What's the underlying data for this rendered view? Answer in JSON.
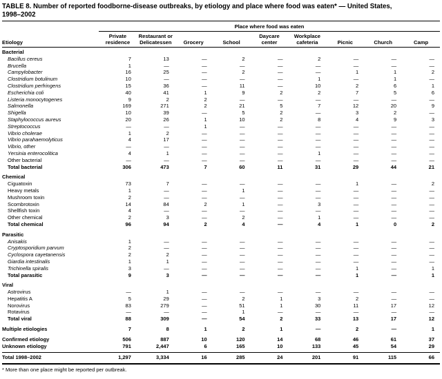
{
  "title": {
    "line1": "TABLE 8. Number of reported foodborne-disease outbreaks, by etiology and place where food was eaten* — United States,",
    "line2": "1998–2002"
  },
  "table": {
    "spanner": "Place where food was eaten",
    "etiology_header": "Etiology",
    "columns": [
      {
        "line1": "Private",
        "line2": "residence"
      },
      {
        "line1": "Restaurant or",
        "line2": "Delicatessen"
      },
      {
        "line1": "",
        "line2": "Grocery"
      },
      {
        "line1": "",
        "line2": "School"
      },
      {
        "line1": "Daycare",
        "line2": "center"
      },
      {
        "line1": "Workplace",
        "line2": "cafeteria"
      },
      {
        "line1": "",
        "line2": "Picnic"
      },
      {
        "line1": "",
        "line2": "Church"
      },
      {
        "line1": "",
        "line2": "Camp"
      }
    ],
    "sections": [
      {
        "header": "Bacterial",
        "rows": [
          {
            "label": "Bacillus cereus",
            "style": "italic",
            "values": [
              "7",
              "13",
              "—",
              "2",
              "—",
              "2",
              "—",
              "—",
              "—"
            ]
          },
          {
            "label": "Brucella",
            "style": "italic",
            "values": [
              "1",
              "—",
              "—",
              "—",
              "—",
              "—",
              "—",
              "—",
              "—"
            ]
          },
          {
            "label": "Campylobacter",
            "style": "italic",
            "values": [
              "16",
              "25",
              "—",
              "2",
              "—",
              "—",
              "1",
              "1",
              "2"
            ]
          },
          {
            "label": "Clostridium botulinum",
            "style": "italic",
            "values": [
              "10",
              "—",
              "—",
              "—",
              "—",
              "1",
              "—",
              "1",
              "—"
            ]
          },
          {
            "label": "Clostridium perfringens",
            "style": "italic",
            "values": [
              "15",
              "36",
              "—",
              "11",
              "—",
              "10",
              "2",
              "6",
              "1"
            ]
          },
          {
            "label": "Escherichia coli",
            "style": "italic",
            "values": [
              "40",
              "41",
              "1",
              "9",
              "2",
              "2",
              "7",
              "5",
              "6"
            ]
          },
          {
            "label": "Listeria monocytogenes",
            "style": "italic",
            "values": [
              "9",
              "2",
              "2",
              "—",
              "—",
              "—",
              "—",
              "—",
              "—"
            ]
          },
          {
            "label": "Salmonella",
            "style": "italic",
            "values": [
              "169",
              "271",
              "2",
              "21",
              "5",
              "7",
              "12",
              "20",
              "9"
            ]
          },
          {
            "label": "Shigella",
            "style": "italic",
            "values": [
              "10",
              "39",
              "—",
              "5",
              "2",
              "—",
              "3",
              "2",
              "—"
            ]
          },
          {
            "label": "Staphylococcus aureus",
            "style": "italic",
            "values": [
              "20",
              "26",
              "1",
              "10",
              "2",
              "8",
              "4",
              "9",
              "3"
            ]
          },
          {
            "label": "Streptococcus",
            "style": "italic",
            "values": [
              "—",
              "—",
              "1",
              "—",
              "—",
              "—",
              "—",
              "—",
              "—"
            ]
          },
          {
            "label": "Vibrio cholerae",
            "style": "italic",
            "values": [
              "1",
              "2",
              "—",
              "—",
              "—",
              "—",
              "—",
              "—",
              "—"
            ]
          },
          {
            "label": "Vibrio parahaemolyticus",
            "style": "italic",
            "values": [
              "4",
              "17",
              "—",
              "—",
              "—",
              "—",
              "—",
              "—",
              "—"
            ]
          },
          {
            "label": "Vibrio, other",
            "style": "italic",
            "values": [
              "—",
              "—",
              "—",
              "—",
              "—",
              "—",
              "—",
              "—",
              "—"
            ]
          },
          {
            "label": "Yersinia enterocolitica",
            "style": "italic",
            "values": [
              "4",
              "1",
              "—",
              "—",
              "—",
              "1",
              "—",
              "—",
              "—"
            ]
          },
          {
            "label": "Other bacterial",
            "style": "plain",
            "values": [
              "—",
              "—",
              "—",
              "—",
              "—",
              "—",
              "—",
              "—",
              "—"
            ]
          },
          {
            "label": "Total bacterial",
            "style": "total",
            "values": [
              "306",
              "473",
              "7",
              "60",
              "11",
              "31",
              "29",
              "44",
              "21"
            ]
          }
        ]
      },
      {
        "header": "Chemical",
        "rows": [
          {
            "label": "Ciguatoxin",
            "style": "plain",
            "values": [
              "73",
              "7",
              "—",
              "—",
              "—",
              "—",
              "1",
              "—",
              "2"
            ]
          },
          {
            "label": "Heavy metals",
            "style": "plain",
            "values": [
              "1",
              "—",
              "—",
              "1",
              "—",
              "—",
              "—",
              "—",
              "—"
            ]
          },
          {
            "label": "Mushroom toxin",
            "style": "plain",
            "values": [
              "2",
              "—",
              "—",
              "—",
              "—",
              "—",
              "—",
              "—",
              "—"
            ]
          },
          {
            "label": "Scombrotoxin",
            "style": "plain",
            "values": [
              "14",
              "84",
              "2",
              "1",
              "—",
              "3",
              "—",
              "—",
              "—"
            ]
          },
          {
            "label": "Shellfish toxin",
            "style": "plain",
            "values": [
              "4",
              "—",
              "—",
              "—",
              "—",
              "—",
              "—",
              "—",
              "—"
            ]
          },
          {
            "label": "Other chemical",
            "style": "plain",
            "values": [
              "2",
              "3",
              "—",
              "2",
              "—",
              "1",
              "—",
              "—",
              "—"
            ]
          },
          {
            "label": "Total chemical",
            "style": "total",
            "values": [
              "96",
              "94",
              "2",
              "4",
              "—",
              "4",
              "1",
              "0",
              "2"
            ]
          }
        ]
      },
      {
        "header": "Parasitic",
        "rows": [
          {
            "label": "Anisakis",
            "style": "italic",
            "values": [
              "1",
              "—",
              "—",
              "—",
              "—",
              "—",
              "—",
              "—",
              "—"
            ]
          },
          {
            "label": "Cryptosporidium parvum",
            "style": "italic",
            "values": [
              "2",
              "—",
              "—",
              "—",
              "—",
              "—",
              "—",
              "—",
              "—"
            ]
          },
          {
            "label": "Cyclospora cayetanensis",
            "style": "italic",
            "values": [
              "2",
              "2",
              "—",
              "—",
              "—",
              "—",
              "—",
              "—",
              "—"
            ]
          },
          {
            "label": "Giardia intestinalis",
            "style": "italic",
            "values": [
              "1",
              "1",
              "—",
              "—",
              "—",
              "—",
              "—",
              "—",
              "—"
            ]
          },
          {
            "label": "Trichinella spiralis",
            "style": "italic",
            "values": [
              "3",
              "—",
              "—",
              "—",
              "—",
              "—",
              "1",
              "—",
              "1"
            ]
          },
          {
            "label": "Total parasitic",
            "style": "total",
            "values": [
              "9",
              "3",
              "—",
              "—",
              "—",
              "—",
              "1",
              "—",
              "1"
            ]
          }
        ]
      },
      {
        "header": "Viral",
        "rows": [
          {
            "label": "Astrovirus",
            "style": "plain",
            "values": [
              "—",
              "1",
              "—",
              "—",
              "—",
              "—",
              "—",
              "—",
              "—"
            ]
          },
          {
            "label": "Hepatitis A",
            "style": "plain",
            "values": [
              "5",
              "29",
              "—",
              "2",
              "1",
              "3",
              "2",
              "—",
              "—"
            ]
          },
          {
            "label": "Norovirus",
            "style": "plain",
            "values": [
              "83",
              "279",
              "—",
              "51",
              "1",
              "30",
              "11",
              "17",
              "12"
            ]
          },
          {
            "label": "Rotavirus",
            "style": "plain",
            "values": [
              "—",
              "—",
              "—",
              "1",
              "—",
              "—",
              "—",
              "—",
              "—"
            ]
          },
          {
            "label": "Total viral",
            "style": "total",
            "values": [
              "88",
              "309",
              "—",
              "54",
              "2",
              "33",
              "13",
              "17",
              "12"
            ]
          }
        ]
      }
    ],
    "standalone_rows": [
      {
        "label": "Multiple etiologies",
        "style": "flush",
        "values": [
          "7",
          "8",
          "1",
          "2",
          "1",
          "—",
          "2",
          "—",
          "1"
        ]
      },
      {
        "label": "Confirmed etiology",
        "style": "flush",
        "values": [
          "506",
          "887",
          "10",
          "120",
          "14",
          "68",
          "46",
          "61",
          "37"
        ]
      },
      {
        "label": "Unknown etiology",
        "style": "flush-tight",
        "values": [
          "791",
          "2,447",
          "6",
          "165",
          "10",
          "133",
          "45",
          "54",
          "29"
        ]
      }
    ],
    "total_row": {
      "label": "Total 1998–2002",
      "values": [
        "1,297",
        "3,334",
        "16",
        "285",
        "24",
        "201",
        "91",
        "115",
        "66"
      ]
    }
  },
  "footnote": "* More than one place might be reported per outbreak."
}
